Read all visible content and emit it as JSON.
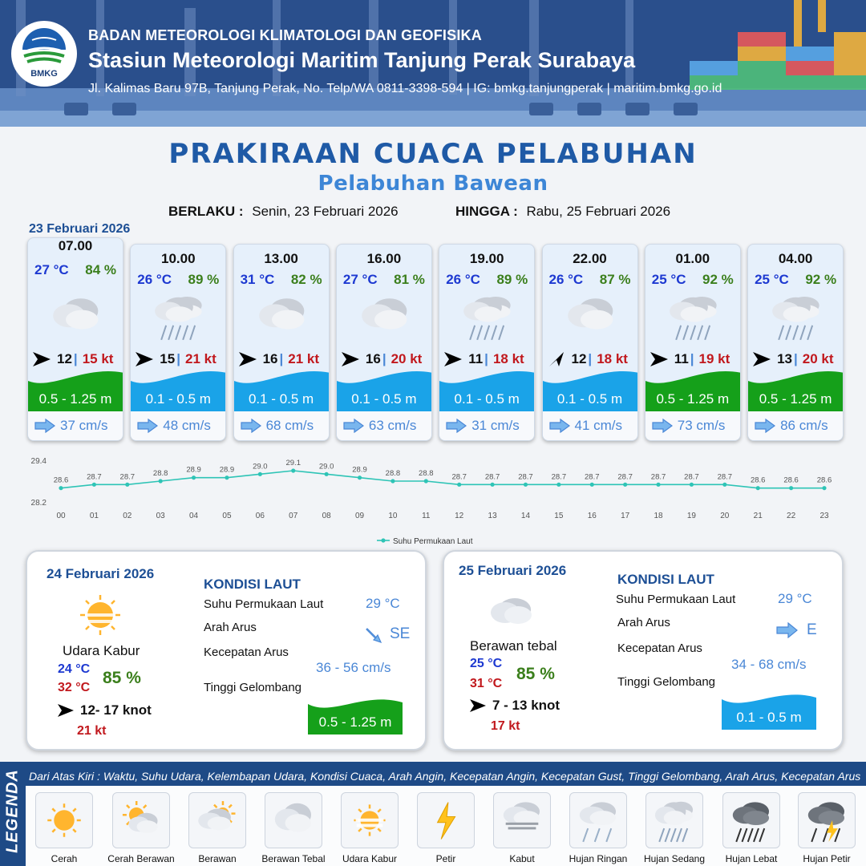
{
  "header": {
    "org": "BADAN METEOROLOGI KLIMATOLOGI DAN GEOFISIKA",
    "station": "Stasiun Meteorologi Maritim Tanjung Perak Surabaya",
    "address": "Jl. Kalimas Baru 97B, Tanjung Perak, No. Telp/WA 0811-3398-594 | IG: bmkg.tanjungperak | maritim.bmkg.go.id",
    "logo_text": "BMKG"
  },
  "title": "PRAKIRAAN CUACA PELABUHAN",
  "subtitle": "Pelabuhan Bawean",
  "validity": {
    "from_label": "BERLAKU :",
    "from_value": "Senin, 23 Februari 2026",
    "to_label": "HINGGA :",
    "to_value": "Rabu, 25 Februari 2026"
  },
  "day1_date": "23 Februari 2026",
  "forecasts": [
    {
      "time": "07.00",
      "temp": "27 °C",
      "hum": "84 %",
      "icon": "berawan-tebal-icon",
      "wind": "12",
      "gust": "15 kt",
      "wave": "0.5 - 1.25 m",
      "wave_level": "moderate",
      "current": "37 cm/s"
    },
    {
      "time": "10.00",
      "temp": "26 °C",
      "hum": "89 %",
      "icon": "hujan-sedang-icon",
      "wind": "15",
      "gust": "21 kt",
      "wave": "0.1 - 0.5 m",
      "wave_level": "low",
      "current": "48 cm/s"
    },
    {
      "time": "13.00",
      "temp": "31 °C",
      "hum": "82 %",
      "icon": "berawan-tebal-icon",
      "wind": "16",
      "gust": "21 kt",
      "wave": "0.1 - 0.5 m",
      "wave_level": "low",
      "current": "68 cm/s"
    },
    {
      "time": "16.00",
      "temp": "27 °C",
      "hum": "81 %",
      "icon": "berawan-tebal-icon",
      "wind": "16",
      "gust": "20 kt",
      "wave": "0.1 - 0.5 m",
      "wave_level": "low",
      "current": "63 cm/s"
    },
    {
      "time": "19.00",
      "temp": "26 °C",
      "hum": "89 %",
      "icon": "hujan-sedang-icon",
      "wind": "11",
      "gust": "18 kt",
      "wave": "0.1 - 0.5 m",
      "wave_level": "low",
      "current": "31 cm/s"
    },
    {
      "time": "22.00",
      "temp": "26 °C",
      "hum": "87 %",
      "icon": "berawan-tebal-icon",
      "wind": "12",
      "gust": "18 kt",
      "wave": "0.1 - 0.5 m",
      "wave_level": "low",
      "current": "41 cm/s"
    },
    {
      "time": "01.00",
      "temp": "25 °C",
      "hum": "92 %",
      "icon": "hujan-sedang-icon",
      "wind": "11",
      "gust": "19 kt",
      "wave": "0.5 - 1.25 m",
      "wave_level": "moderate",
      "current": "73 cm/s"
    },
    {
      "time": "04.00",
      "temp": "25 °C",
      "hum": "92 %",
      "icon": "hujan-sedang-icon",
      "wind": "13",
      "gust": "20 kt",
      "wave": "0.5 - 1.25 m",
      "wave_level": "moderate",
      "current": "86 cm/s"
    }
  ],
  "chart_data": {
    "type": "line",
    "categories": [
      "00",
      "01",
      "02",
      "03",
      "04",
      "05",
      "06",
      "07",
      "08",
      "09",
      "10",
      "11",
      "12",
      "13",
      "14",
      "15",
      "16",
      "17",
      "18",
      "19",
      "20",
      "21",
      "22",
      "23"
    ],
    "series": [
      {
        "name": "Suhu Permukaan Laut",
        "values": [
          28.6,
          28.7,
          28.7,
          28.8,
          28.9,
          28.9,
          29.0,
          29.1,
          29.0,
          28.9,
          28.8,
          28.8,
          28.7,
          28.7,
          28.7,
          28.7,
          28.7,
          28.7,
          28.7,
          28.7,
          28.7,
          28.6,
          28.6,
          28.6
        ],
        "color": "#2ec4b6"
      }
    ],
    "data_labels": [
      "28.6",
      "28.7",
      "28.7",
      "28.8",
      "28.9",
      "28.9",
      "29.0",
      "29.1",
      "29.0",
      "28.9",
      "28.8",
      "28.8",
      "28.7",
      "28.7",
      "28.7",
      "28.7",
      "28.7",
      "28.7",
      "28.7",
      "28.7",
      "28.7",
      "28.6",
      "28.6",
      "28.6"
    ],
    "y_ticks": [
      "29.4",
      "28.2"
    ],
    "ylim": [
      28.2,
      29.4
    ],
    "legend": "bottom",
    "grid": false
  },
  "day2": {
    "date": "24 Februari 2026",
    "cond": "Udara Kabur",
    "icon": "udara-kabur-icon",
    "tmin": "24 °C",
    "tmax": "32 °C",
    "hum": "85 %",
    "wind": "12- 17 knot",
    "gust": "21 kt",
    "kondisi_title": "KONDISI LAUT",
    "sst_label": "Suhu Permukaan Laut",
    "sst": "29 °C",
    "dir_label": "Arah Arus",
    "dir": "SE",
    "speed_label": "Kecepatan Arus",
    "speed": "36  - 56 cm/s",
    "wave_label": "Tinggi Gelombang",
    "wave": "0.5 - 1.25 m"
  },
  "day3": {
    "date": "25 Februari 2026",
    "cond": "Berawan tebal",
    "icon": "berawan-tebal-icon",
    "tmin": "25 °C",
    "tmax": "31 °C",
    "hum": "85 %",
    "wind": "7  - 13 knot",
    "gust": "17 kt",
    "kondisi_title": "KONDISI LAUT",
    "sst_label": "Suhu Permukaan Laut",
    "sst": "29 °C",
    "dir_label": "Arah Arus",
    "dir": "E",
    "speed_label": "Kecepatan Arus",
    "speed": "34 - 68 cm/s",
    "wave_label": "Tinggi Gelombang",
    "wave": "0.1 - 0.5 m"
  },
  "legend": {
    "side_title": "LEGENDA",
    "description": "Dari Atas Kiri : Waktu, Suhu Udara, Kelembapan Udara, Kondisi Cuaca, Arah Angin, Kecepatan Angin, Kecepatan Gust, Tinggi Gelombang, Arah Arus, Kecepatan Arus",
    "items": [
      {
        "label": "Cerah",
        "icon": "cerah-icon"
      },
      {
        "label": "Cerah Berawan",
        "icon": "cerah-berawan-icon"
      },
      {
        "label": "Berawan",
        "icon": "berawan-icon"
      },
      {
        "label": "Berawan Tebal",
        "icon": "berawan-tebal-icon"
      },
      {
        "label": "Udara Kabur",
        "icon": "udara-kabur-icon"
      },
      {
        "label": "Petir",
        "icon": "petir-icon"
      },
      {
        "label": "Kabut",
        "icon": "kabut-icon"
      },
      {
        "label": "Hujan Ringan",
        "icon": "hujan-ringan-icon"
      },
      {
        "label": "Hujan Sedang",
        "icon": "hujan-sedang-icon"
      },
      {
        "label": "Hujan Lebat",
        "icon": "hujan-lebat-icon"
      },
      {
        "label": "Hujan Petir",
        "icon": "hujan-petir-icon"
      }
    ]
  },
  "colors": {
    "title": "#1f5aa6",
    "temp": "#1d39d1",
    "humidity": "#3b7f1c",
    "gust": "#c1181d",
    "wave_moderate": "#15a01a",
    "wave_low": "#1aa3e8",
    "current": "#4a87d6"
  }
}
